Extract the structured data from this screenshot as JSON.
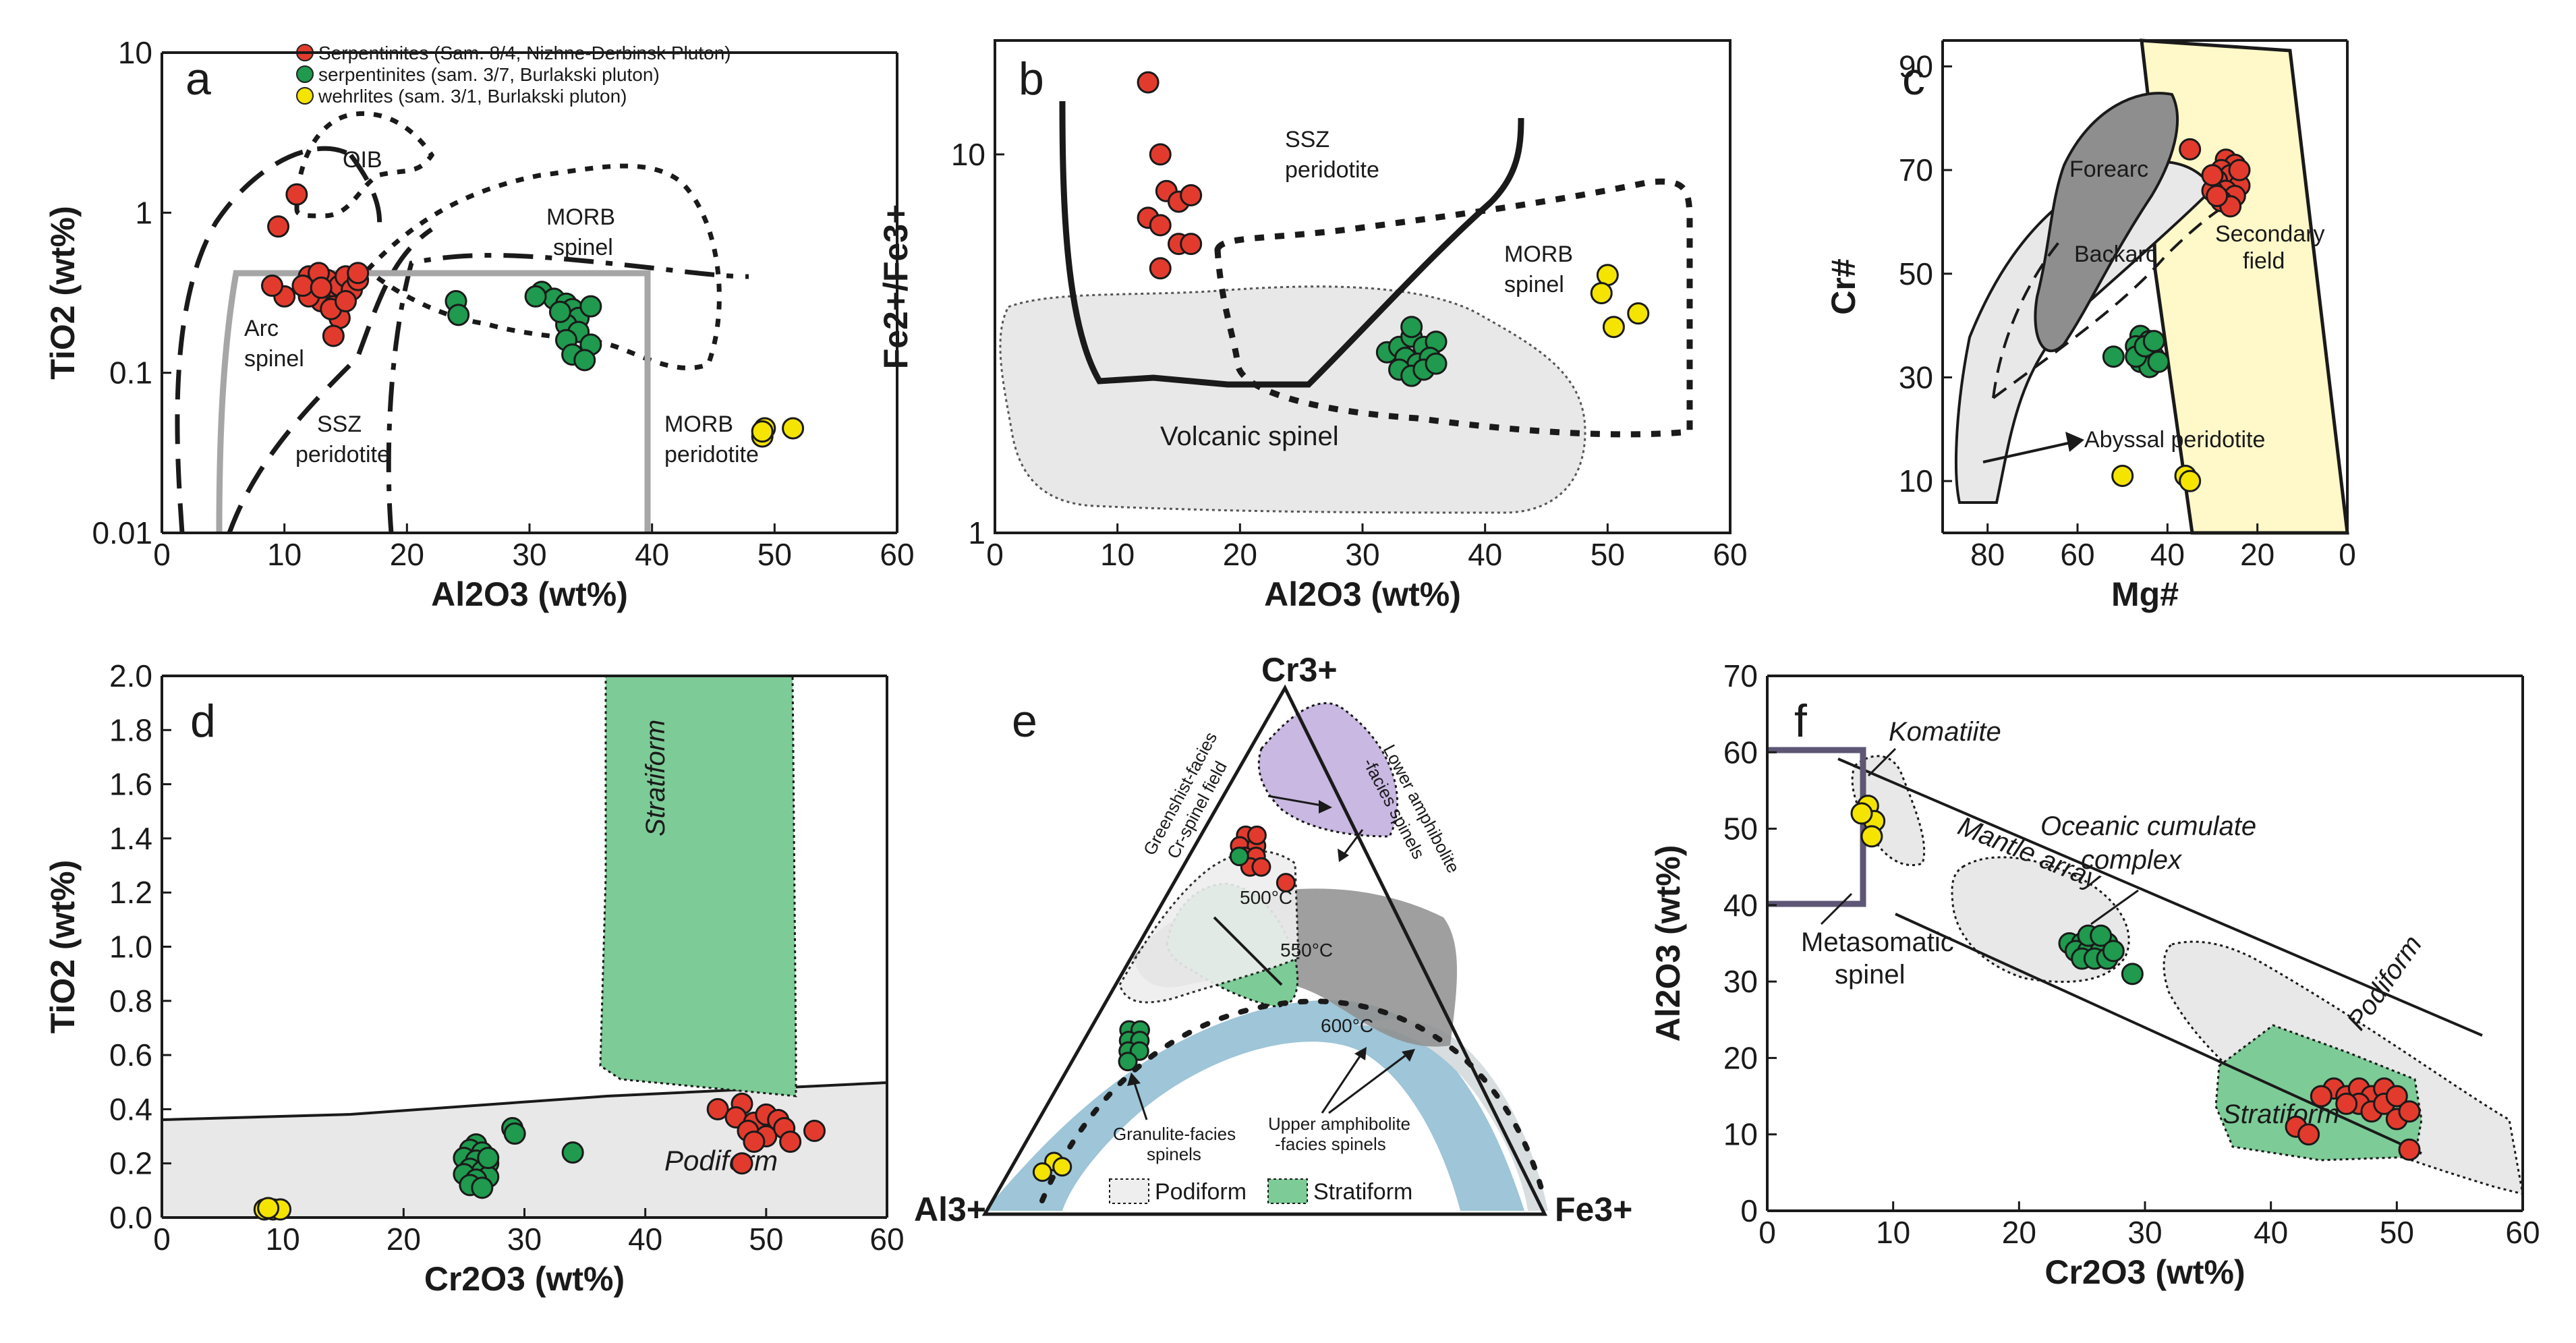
{
  "colors": {
    "serpentinite_848": "#e23b2e",
    "serpentinite_37": "#1f9a4e",
    "wehrlite": "#f4e400",
    "grey_field": "#e8e8e8",
    "dark_grey_field": "#8e8e8e",
    "green_field": "#7dcb97",
    "yellow_field": "#fff8c8",
    "purple_field": "#c9b8e2",
    "blue_field": "#9ec5d8"
  },
  "legend": {
    "items": [
      {
        "label": "Serpentinites (Sam. 8/4, Nizhne-Derbinsk Pluton)",
        "color": "#e23b2e"
      },
      {
        "label": "serpentinites (sam. 3/7, Burlakski pluton)",
        "color": "#1f9a4e"
      },
      {
        "label": "wehrlites (sam. 3/1, Burlakski pluton)",
        "color": "#f4e400"
      }
    ]
  },
  "chart_data": [
    {
      "panel": "a",
      "type": "scatter",
      "xscale": "linear",
      "yscale": "log",
      "xlabel": "Al2O3 (wt%)",
      "ylabel": "TiO2 (wt%)",
      "xlim": [
        0,
        60
      ],
      "ylim": [
        0.01,
        10
      ],
      "xticks": [
        "0",
        "10",
        "20",
        "30",
        "40",
        "50",
        "60"
      ],
      "yticks": [
        "0.01",
        "0.1",
        "1",
        "10"
      ],
      "field_labels": [
        "OIB",
        "MORB",
        "spinel",
        "Arc",
        "spinel",
        "SSZ",
        "peridotite",
        "MORB",
        "peridotite"
      ],
      "series": [
        {
          "name": "Serpentinites (Sam. 8/4)",
          "points": [
            [
              9.5,
              0.82
            ],
            [
              10,
              0.3
            ],
            [
              9,
              0.35
            ],
            [
              12,
              0.4
            ],
            [
              12.5,
              0.36
            ],
            [
              13,
              0.32
            ],
            [
              13.5,
              0.38
            ],
            [
              14,
              0.3
            ],
            [
              14.5,
              0.35
            ],
            [
              15,
              0.4
            ],
            [
              13,
              0.28
            ],
            [
              14,
              0.26
            ],
            [
              12,
              0.3
            ],
            [
              11.5,
              0.35
            ],
            [
              15.5,
              0.33
            ],
            [
              16,
              0.38
            ],
            [
              14.5,
              0.22
            ],
            [
              13.8,
              0.25
            ],
            [
              12.8,
              0.42
            ],
            [
              15,
              0.28
            ],
            [
              11,
              1.3
            ],
            [
              14,
              0.17
            ],
            [
              16,
              0.42
            ],
            [
              13,
              0.34
            ]
          ]
        },
        {
          "name": "serpentinites (sam. 3/7)",
          "points": [
            [
              24,
              0.28
            ],
            [
              24.2,
              0.23
            ],
            [
              31,
              0.32
            ],
            [
              32,
              0.29
            ],
            [
              33,
              0.27
            ],
            [
              33.5,
              0.25
            ],
            [
              34,
              0.22
            ],
            [
              33,
              0.2
            ],
            [
              34,
              0.18
            ],
            [
              33,
              0.16
            ],
            [
              35,
              0.15
            ],
            [
              33.5,
              0.13
            ],
            [
              34.5,
              0.12
            ],
            [
              32.5,
              0.24
            ],
            [
              35,
              0.26
            ],
            [
              30.5,
              0.3
            ]
          ]
        },
        {
          "name": "wehrlites (sam. 3/1)",
          "points": [
            [
              49,
              0.04
            ],
            [
              49.2,
              0.045
            ],
            [
              51.5,
              0.045
            ],
            [
              49,
              0.043
            ]
          ]
        }
      ]
    },
    {
      "panel": "b",
      "type": "scatter",
      "xscale": "linear",
      "yscale": "log",
      "xlabel": "Al2O3 (wt%)",
      "ylabel": "Fe2+/Fe3+",
      "xlim": [
        0,
        60
      ],
      "ylim": [
        1,
        20
      ],
      "xticks": [
        "0",
        "10",
        "20",
        "30",
        "40",
        "50",
        "60"
      ],
      "yticks": [
        "1",
        "10"
      ],
      "field_labels": [
        "SSZ",
        "peridotite",
        "MORB",
        "spinel",
        "Volcanic spinel"
      ],
      "series": [
        {
          "name": "Serpentinites (Sam. 8/4)",
          "points": [
            [
              12.5,
              15.5
            ],
            [
              13.5,
              10
            ],
            [
              14,
              8
            ],
            [
              15,
              7.5
            ],
            [
              16,
              7.8
            ],
            [
              12.5,
              6.8
            ],
            [
              13.5,
              6.5
            ],
            [
              15,
              5.8
            ],
            [
              16,
              5.8
            ],
            [
              13.5,
              5
            ]
          ]
        },
        {
          "name": "serpentinites (sam. 3/7)",
          "points": [
            [
              32,
              3
            ],
            [
              33,
              3.1
            ],
            [
              34,
              3.3
            ],
            [
              35,
              3.1
            ],
            [
              36,
              3.2
            ],
            [
              33.5,
              2.9
            ],
            [
              34.5,
              2.8
            ],
            [
              35.5,
              2.9
            ],
            [
              33,
              2.7
            ],
            [
              34,
              2.6
            ],
            [
              35,
              2.7
            ],
            [
              36,
              2.8
            ],
            [
              34,
              3.5
            ]
          ]
        },
        {
          "name": "wehrlites (sam. 3/1)",
          "points": [
            [
              50,
              4.8
            ],
            [
              49.5,
              4.3
            ],
            [
              52.5,
              3.8
            ],
            [
              50.5,
              3.5
            ]
          ]
        }
      ]
    },
    {
      "panel": "c",
      "type": "scatter",
      "xscale": "linear-reversed",
      "yscale": "linear",
      "xlabel": "Mg#",
      "ylabel": "Cr#",
      "xlim": [
        90,
        0
      ],
      "ylim": [
        0,
        95
      ],
      "xticks": [
        "80",
        "60",
        "40",
        "20",
        "0"
      ],
      "yticks": [
        "10",
        "30",
        "50",
        "70",
        "90"
      ],
      "field_labels": [
        "Forearc",
        "Backarc",
        "Secondary",
        "field",
        "Abyssal peridotite"
      ],
      "series": [
        {
          "name": "Serpentinites (Sam. 8/4)",
          "points": [
            [
              35,
              74
            ],
            [
              27,
              72
            ],
            [
              25,
              71
            ],
            [
              28,
              70
            ],
            [
              26,
              69
            ],
            [
              29,
              68
            ],
            [
              24,
              67
            ],
            [
              27,
              66
            ],
            [
              30,
              66
            ],
            [
              25,
              65
            ],
            [
              28,
              64
            ],
            [
              26,
              63
            ],
            [
              29,
              65
            ],
            [
              24,
              70
            ],
            [
              30,
              69
            ]
          ]
        },
        {
          "name": "serpentinites (sam. 3/7)",
          "points": [
            [
              52,
              34
            ],
            [
              46,
              38
            ],
            [
              44,
              37
            ],
            [
              47,
              36
            ],
            [
              45,
              35
            ],
            [
              43,
              34
            ],
            [
              46,
              33
            ],
            [
              44,
              32
            ],
            [
              42,
              33
            ],
            [
              47,
              34
            ],
            [
              45,
              36
            ],
            [
              43,
              37
            ]
          ]
        },
        {
          "name": "wehrlites (sam. 3/1)",
          "points": [
            [
              50,
              11
            ],
            [
              36,
              11
            ],
            [
              35,
              10
            ]
          ]
        }
      ]
    },
    {
      "panel": "d",
      "type": "scatter",
      "xscale": "linear",
      "yscale": "linear",
      "xlabel": "Cr2O3 (wt%)",
      "ylabel": "TiO2 (wt%)",
      "xlim": [
        0,
        60
      ],
      "ylim": [
        0,
        2.0
      ],
      "xticks": [
        "0",
        "10",
        "20",
        "30",
        "40",
        "50",
        "60"
      ],
      "yticks": [
        "0.0",
        "0.2",
        "0.4",
        "0.6",
        "0.8",
        "1.0",
        "1.2",
        "1.4",
        "1.6",
        "1.8",
        "2.0"
      ],
      "field_labels": [
        "Stratiform",
        "Podiform"
      ],
      "series": [
        {
          "name": "Serpentinites (Sam. 8/4)",
          "points": [
            [
              46,
              0.4
            ],
            [
              48,
              0.42
            ],
            [
              47.5,
              0.37
            ],
            [
              49,
              0.35
            ],
            [
              50,
              0.38
            ],
            [
              51,
              0.36
            ],
            [
              54,
              0.32
            ],
            [
              48.5,
              0.32
            ],
            [
              50,
              0.3
            ],
            [
              49,
              0.28
            ],
            [
              51.5,
              0.33
            ],
            [
              48,
              0.2
            ],
            [
              52,
              0.28
            ]
          ]
        },
        {
          "name": "serpentinites (sam. 3/7)",
          "points": [
            [
              26,
              0.27
            ],
            [
              25.5,
              0.25
            ],
            [
              26.5,
              0.24
            ],
            [
              25,
              0.22
            ],
            [
              26,
              0.21
            ],
            [
              27,
              0.2
            ],
            [
              25.5,
              0.18
            ],
            [
              26.5,
              0.17
            ],
            [
              25,
              0.16
            ],
            [
              27,
              0.15
            ],
            [
              26,
              0.14
            ],
            [
              25.5,
              0.12
            ],
            [
              26.5,
              0.11
            ],
            [
              29,
              0.33
            ],
            [
              29.2,
              0.31
            ],
            [
              34,
              0.24
            ],
            [
              27,
              0.22
            ]
          ]
        },
        {
          "name": "wehrlites (sam. 3/1)",
          "points": [
            [
              8.5,
              0.03
            ],
            [
              9.2,
              0.03
            ],
            [
              9.8,
              0.03
            ],
            [
              8.8,
              0.035
            ]
          ]
        }
      ]
    },
    {
      "panel": "e",
      "type": "ternary",
      "vertices": [
        "Cr3+",
        "Al3+",
        "Fe3+"
      ],
      "field_labels": [
        "Greenshist-facies",
        "Cr-spinel field",
        "Lower amphibolite",
        "-facies spinels",
        "500°C",
        "550°C",
        "600°C",
        "Granulite-facies",
        "spinels",
        "Upper amphibolite",
        "-facies spinels"
      ],
      "legend": [
        "Podiform",
        "Stratiform"
      ],
      "series": [
        {
          "name": "Serpentinites (Sam. 8/4)",
          "points_cr_al_fe": [
            [
              0.72,
              0.2,
              0.08
            ],
            [
              0.7,
              0.22,
              0.08
            ],
            [
              0.7,
              0.19,
              0.11
            ],
            [
              0.68,
              0.22,
              0.1
            ],
            [
              0.68,
              0.2,
              0.12
            ],
            [
              0.72,
              0.18,
              0.1
            ],
            [
              0.66,
              0.22,
              0.12
            ],
            [
              0.66,
              0.2,
              0.14
            ],
            [
              0.63,
              0.17,
              0.2
            ]
          ]
        },
        {
          "name": "serpentinites (sam. 3/7)",
          "points_cr_al_fe": [
            [
              0.35,
              0.58,
              0.07
            ],
            [
              0.35,
              0.56,
              0.09
            ],
            [
              0.33,
              0.59,
              0.08
            ],
            [
              0.33,
              0.57,
              0.1
            ],
            [
              0.31,
              0.6,
              0.09
            ],
            [
              0.31,
              0.58,
              0.11
            ],
            [
              0.29,
              0.61,
              0.1
            ],
            [
              0.68,
              0.23,
              0.09
            ]
          ]
        },
        {
          "name": "wehrlites (sam. 3/1)",
          "points_cr_al_fe": [
            [
              0.1,
              0.83,
              0.07
            ],
            [
              0.08,
              0.86,
              0.06
            ],
            [
              0.09,
              0.82,
              0.09
            ]
          ]
        }
      ]
    },
    {
      "panel": "f",
      "type": "scatter",
      "xscale": "linear",
      "yscale": "linear",
      "xlabel": "Cr2O3 (wt%)",
      "ylabel": "Al2O3 (wt%)",
      "xlim": [
        0,
        60
      ],
      "ylim": [
        0,
        70
      ],
      "xticks": [
        "0",
        "10",
        "20",
        "30",
        "40",
        "50",
        "60"
      ],
      "yticks": [
        "0",
        "10",
        "20",
        "30",
        "40",
        "50",
        "60",
        "70"
      ],
      "field_labels": [
        "Komatiite",
        "Oceanic cumulate",
        "complex",
        "Mantle array",
        "Podiform",
        "Stratiform",
        "Metasomatic",
        "spinel"
      ],
      "series": [
        {
          "name": "Serpentinites (Sam. 8/4)",
          "points": [
            [
              45,
              16
            ],
            [
              46,
              15
            ],
            [
              47,
              16
            ],
            [
              48,
              15
            ],
            [
              49,
              16
            ],
            [
              47,
              14
            ],
            [
              48,
              13
            ],
            [
              49,
              14
            ],
            [
              50,
              15
            ],
            [
              46,
              14
            ],
            [
              50,
              12
            ],
            [
              51,
              13
            ],
            [
              42,
              11
            ],
            [
              43,
              10
            ],
            [
              51,
              8
            ],
            [
              44,
              15
            ]
          ]
        },
        {
          "name": "serpentinites (sam. 3/7)",
          "points": [
            [
              24,
              35
            ],
            [
              25,
              35
            ],
            [
              26,
              35
            ],
            [
              27,
              35
            ],
            [
              24.5,
              34
            ],
            [
              25.5,
              34
            ],
            [
              26.5,
              34
            ],
            [
              25,
              33
            ],
            [
              26,
              33
            ],
            [
              27,
              33
            ],
            [
              25.5,
              36
            ],
            [
              26.5,
              36
            ],
            [
              27.5,
              34
            ],
            [
              29,
              31
            ]
          ]
        },
        {
          "name": "wehrlites (sam. 3/1)",
          "points": [
            [
              8,
              53
            ],
            [
              8.5,
              51
            ],
            [
              8.3,
              49
            ],
            [
              7.5,
              52
            ]
          ]
        }
      ]
    }
  ]
}
